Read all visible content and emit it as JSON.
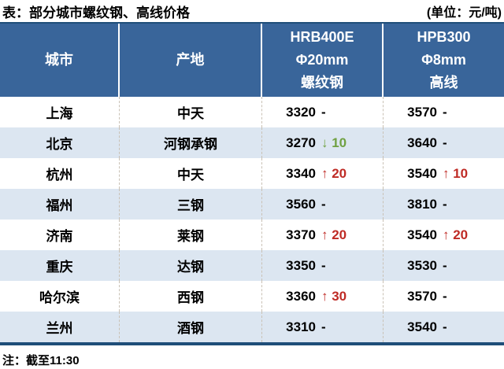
{
  "title": "表：部分城市螺纹钢、高线价格",
  "unit": "(单位：元/吨)",
  "footnote": "注：截至11:30",
  "colors": {
    "header_bg": "#39659A",
    "alt_row_bg": "#DCE6F1",
    "border_navy": "#1F4E79",
    "up_red": "#BF2B25",
    "down_green": "#70A142",
    "flat_black": "#000000"
  },
  "table": {
    "headers": {
      "city": "城市",
      "origin": "产地",
      "rebar_l1": "HRB400E",
      "rebar_l2": "Φ20mm",
      "rebar_l3": "螺纹钢",
      "wire_l1": "HPB300",
      "wire_l2": "Φ8mm",
      "wire_l3": "高线"
    },
    "rows": [
      {
        "city": "上海",
        "origin": "中天",
        "rebar_price": "3320",
        "rebar_change": "-",
        "rebar_change_color": "#000000",
        "wire_price": "3570",
        "wire_change": "-",
        "wire_change_color": "#000000"
      },
      {
        "city": "北京",
        "origin": "河钢承钢",
        "rebar_price": "3270",
        "rebar_change": "↓ 10",
        "rebar_change_color": "#70A142",
        "wire_price": "3640",
        "wire_change": "-",
        "wire_change_color": "#000000"
      },
      {
        "city": "杭州",
        "origin": "中天",
        "rebar_price": "3340",
        "rebar_change": "↑ 20",
        "rebar_change_color": "#BF2B25",
        "wire_price": "3540",
        "wire_change": "↑ 10",
        "wire_change_color": "#BF2B25"
      },
      {
        "city": "福州",
        "origin": "三钢",
        "rebar_price": "3560",
        "rebar_change": "-",
        "rebar_change_color": "#000000",
        "wire_price": "3810",
        "wire_change": "-",
        "wire_change_color": "#000000"
      },
      {
        "city": "济南",
        "origin": "莱钢",
        "rebar_price": "3370",
        "rebar_change": "↑ 20",
        "rebar_change_color": "#BF2B25",
        "wire_price": "3540",
        "wire_change": "↑ 20",
        "wire_change_color": "#BF2B25"
      },
      {
        "city": "重庆",
        "origin": "达钢",
        "rebar_price": "3350",
        "rebar_change": "-",
        "rebar_change_color": "#000000",
        "wire_price": "3530",
        "wire_change": "-",
        "wire_change_color": "#000000"
      },
      {
        "city": "哈尔滨",
        "origin": "西钢",
        "rebar_price": "3360",
        "rebar_change": "↑ 30",
        "rebar_change_color": "#BF2B25",
        "wire_price": "3570",
        "wire_change": "-",
        "wire_change_color": "#000000"
      },
      {
        "city": "兰州",
        "origin": "酒钢",
        "rebar_price": "3310",
        "rebar_change": "-",
        "rebar_change_color": "#000000",
        "wire_price": "3540",
        "wire_change": "-",
        "wire_change_color": "#000000"
      }
    ]
  },
  "chart_data": {
    "type": "table",
    "title": "表：部分城市螺纹钢、高线价格",
    "unit": "元/吨",
    "columns": [
      "城市",
      "产地",
      "HRB400E Φ20mm 螺纹钢",
      "HPB300 Φ8mm 高线"
    ],
    "rows": [
      [
        "上海",
        "中天",
        "3320 -",
        "3570 -"
      ],
      [
        "北京",
        "河钢承钢",
        "3270 ↓10",
        "3640 -"
      ],
      [
        "杭州",
        "中天",
        "3340 ↑20",
        "3540 ↑10"
      ],
      [
        "福州",
        "三钢",
        "3560 -",
        "3810 -"
      ],
      [
        "济南",
        "莱钢",
        "3370 ↑20",
        "3540 ↑20"
      ],
      [
        "重庆",
        "达钢",
        "3350 -",
        "3530 -"
      ],
      [
        "哈尔滨",
        "西钢",
        "3360 ↑30",
        "3570 -"
      ],
      [
        "兰州",
        "酒钢",
        "3310 -",
        "3540 -"
      ]
    ],
    "note": "注：截至11:30"
  }
}
